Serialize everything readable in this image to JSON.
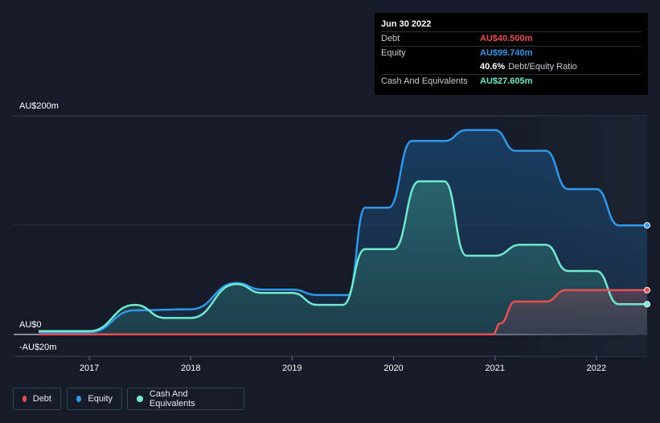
{
  "tooltip": {
    "date": "Jun 30 2022",
    "rows": [
      {
        "label": "Debt",
        "value": "AU$40.500m",
        "color": "#e8504f"
      },
      {
        "label": "Equity",
        "value": "AU$99.740m",
        "color": "#2f98e8"
      },
      {
        "label": "",
        "value": "40.6%",
        "sub": "Debt/Equity Ratio",
        "color": "#ffffff"
      },
      {
        "label": "Cash And Equivalents",
        "value": "AU$27.605m",
        "color": "#71e8cf"
      }
    ]
  },
  "legend": [
    {
      "label": "Debt",
      "color": "#e8504f"
    },
    {
      "label": "Equity",
      "color": "#2f98e8"
    },
    {
      "label": "Cash And Equivalents",
      "color": "#71e8cf"
    }
  ],
  "chart_data": {
    "type": "area",
    "y_ticks": [
      "AU$200m",
      "AU$0",
      "-AU$20m"
    ],
    "ylim": [
      -20,
      200
    ],
    "x_ticks": [
      "2017",
      "2018",
      "2019",
      "2020",
      "2021",
      "2022"
    ],
    "xlim": [
      2016.5,
      2022.5
    ],
    "grid": true,
    "legend_position": "bottom-left",
    "series": [
      {
        "name": "Debt",
        "color": "#e8504f",
        "points": [
          [
            2016.5,
            0
          ],
          [
            2020.98,
            0
          ],
          [
            2021.05,
            10
          ],
          [
            2021.2,
            30
          ],
          [
            2021.5,
            30
          ],
          [
            2021.7,
            40.5
          ],
          [
            2022.5,
            40.5
          ]
        ]
      },
      {
        "name": "Equity",
        "color": "#2f98e8",
        "points": [
          [
            2016.5,
            2
          ],
          [
            2017.0,
            2
          ],
          [
            2017.45,
            22
          ],
          [
            2018.0,
            23
          ],
          [
            2018.45,
            47
          ],
          [
            2018.7,
            41
          ],
          [
            2019.0,
            41
          ],
          [
            2019.25,
            36
          ],
          [
            2019.55,
            36
          ],
          [
            2019.72,
            116
          ],
          [
            2019.95,
            116
          ],
          [
            2020.18,
            177
          ],
          [
            2020.5,
            177
          ],
          [
            2020.72,
            187
          ],
          [
            2021.0,
            187
          ],
          [
            2021.2,
            168
          ],
          [
            2021.5,
            168
          ],
          [
            2021.72,
            133
          ],
          [
            2022.0,
            133
          ],
          [
            2022.22,
            99.74
          ],
          [
            2022.5,
            99.74
          ]
        ]
      },
      {
        "name": "Cash And Equivalents",
        "color": "#71e8cf",
        "points": [
          [
            2016.5,
            3
          ],
          [
            2017.0,
            3
          ],
          [
            2017.45,
            27
          ],
          [
            2017.75,
            15
          ],
          [
            2018.0,
            15
          ],
          [
            2018.45,
            46
          ],
          [
            2018.7,
            38
          ],
          [
            2019.0,
            38
          ],
          [
            2019.25,
            27
          ],
          [
            2019.5,
            27
          ],
          [
            2019.72,
            78
          ],
          [
            2020.0,
            78
          ],
          [
            2020.25,
            140
          ],
          [
            2020.5,
            140
          ],
          [
            2020.72,
            72
          ],
          [
            2021.0,
            72
          ],
          [
            2021.25,
            82
          ],
          [
            2021.5,
            82
          ],
          [
            2021.72,
            58
          ],
          [
            2022.0,
            58
          ],
          [
            2022.22,
            27.605
          ],
          [
            2022.5,
            27.605
          ]
        ]
      }
    ]
  }
}
